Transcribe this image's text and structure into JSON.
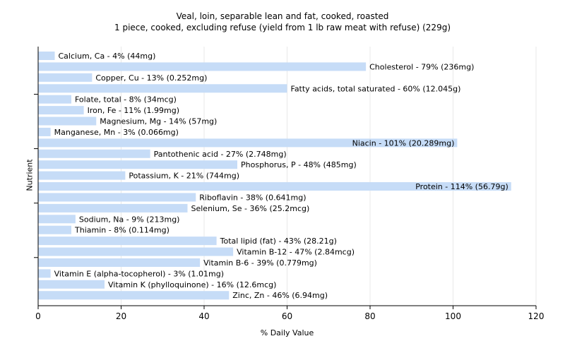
{
  "chart_data": {
    "type": "bar",
    "orientation": "horizontal",
    "title": "Veal, loin, separable lean and fat, cooked, roasted",
    "subtitle": "1 piece, cooked, excluding refuse (yield from 1 lb raw meat with refuse) (229g)",
    "xlabel": "% Daily Value",
    "ylabel": "Nutrient",
    "xlim": [
      0,
      120
    ],
    "xticks": [
      0,
      20,
      40,
      60,
      80,
      100,
      120
    ],
    "grid": true,
    "bar_color": "#c6dcf7",
    "grid_color": "#e8e8e8",
    "categories": [
      "Calcium, Ca",
      "Cholesterol",
      "Copper, Cu",
      "Fatty acids, total saturated",
      "Folate, total",
      "Iron, Fe",
      "Magnesium, Mg",
      "Manganese, Mn",
      "Niacin",
      "Pantothenic acid",
      "Phosphorus, P",
      "Potassium, K",
      "Protein",
      "Riboflavin",
      "Selenium, Se",
      "Sodium, Na",
      "Thiamin",
      "Total lipid (fat)",
      "Vitamin B-12",
      "Vitamin B-6",
      "Vitamin E (alpha-tocopherol)",
      "Vitamin K (phylloquinone)",
      "Zinc, Zn"
    ],
    "values": [
      4,
      79,
      13,
      60,
      8,
      11,
      14,
      3,
      101,
      27,
      48,
      21,
      114,
      38,
      36,
      9,
      8,
      43,
      47,
      39,
      3,
      16,
      46
    ],
    "labels": [
      "Calcium, Ca - 4% (44mg)",
      "Cholesterol - 79% (236mg)",
      "Copper, Cu - 13% (0.252mg)",
      "Fatty acids, total saturated - 60% (12.045g)",
      "Folate, total - 8% (34mcg)",
      "Iron, Fe - 11% (1.99mg)",
      "Magnesium, Mg - 14% (57mg)",
      "Manganese, Mn - 3% (0.066mg)",
      "Niacin - 101% (20.289mg)",
      "Pantothenic acid - 27% (2.748mg)",
      "Phosphorus, P - 48% (485mg)",
      "Potassium, K - 21% (744mg)",
      "Protein - 114% (56.79g)",
      "Riboflavin - 38% (0.641mg)",
      "Selenium, Se - 36% (25.2mcg)",
      "Sodium, Na - 9% (213mg)",
      "Thiamin - 8% (0.114mg)",
      "Total lipid (fat) - 43% (28.21g)",
      "Vitamin B-12 - 47% (2.84mcg)",
      "Vitamin B-6 - 39% (0.779mg)",
      "Vitamin E (alpha-tocopherol) - 3% (1.01mg)",
      "Vitamin K (phylloquinone) - 16% (12.6mcg)",
      "Zinc, Zn - 46% (6.94mg)"
    ]
  }
}
